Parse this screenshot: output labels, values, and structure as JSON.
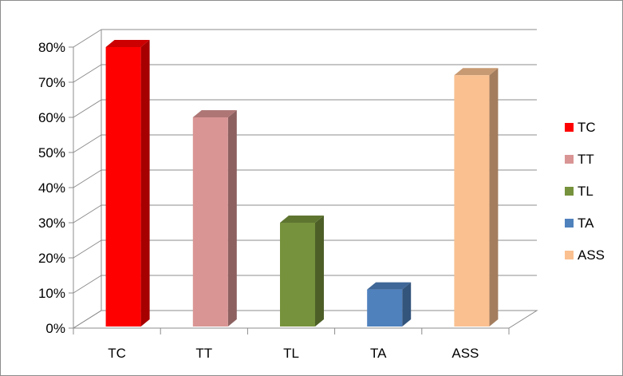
{
  "chart_data": {
    "type": "bar",
    "categories": [
      "TC",
      "TT",
      "TL",
      "TA",
      "ASS"
    ],
    "values": [
      80,
      60,
      30,
      11,
      72
    ],
    "colors": [
      "#ff0000",
      "#d99594",
      "#76923c",
      "#4f81bd",
      "#fac090"
    ],
    "ylim": [
      0,
      80
    ],
    "yticks": [
      "0%",
      "10%",
      "20%",
      "30%",
      "40%",
      "50%",
      "60%",
      "70%",
      "80%"
    ],
    "ytick_values": [
      0,
      10,
      20,
      30,
      40,
      50,
      60,
      70,
      80
    ],
    "grid": true,
    "legend_position": "right",
    "legend": [
      {
        "label": "TC",
        "color": "#ff0000"
      },
      {
        "label": "TT",
        "color": "#d99594"
      },
      {
        "label": "TL",
        "color": "#76923c"
      },
      {
        "label": "TA",
        "color": "#4f81bd"
      },
      {
        "label": "ASS",
        "color": "#fac090"
      }
    ],
    "style": "3d-column"
  }
}
